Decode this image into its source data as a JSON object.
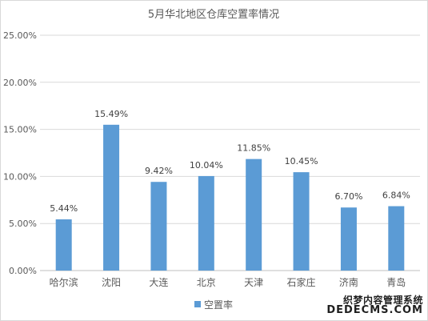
{
  "colors": {
    "bar": "#5b9bd5",
    "grid": "#d9d9d9",
    "axis": "#bfbfbf",
    "text": "#595959",
    "label": "#404040"
  },
  "chart_data": {
    "type": "bar",
    "title": "5月华北地区仓库空置率情况",
    "categories": [
      "哈尔滨",
      "沈阳",
      "大连",
      "北京",
      "天津",
      "石家庄",
      "济南",
      "青岛"
    ],
    "series": [
      {
        "name": "空置率",
        "values": [
          5.44,
          15.49,
          9.42,
          10.04,
          11.85,
          10.45,
          6.7,
          6.84
        ]
      }
    ],
    "data_labels": [
      "5.44%",
      "15.49%",
      "9.42%",
      "10.04%",
      "11.85%",
      "10.45%",
      "6.70%",
      "6.84%"
    ],
    "yticks": [
      "0.00%",
      "5.00%",
      "10.00%",
      "15.00%",
      "20.00%",
      "25.00%"
    ],
    "ylim": [
      0,
      25
    ],
    "grid": true,
    "legend_position": "bottom"
  },
  "watermark": {
    "line1": "织梦内容管理系统",
    "line2": "DEDECMS.COM"
  }
}
